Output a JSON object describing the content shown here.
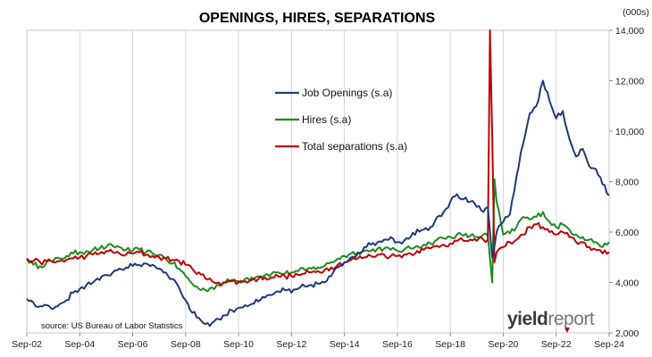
{
  "chart_data": {
    "type": "line",
    "title": "OPENINGS, HIRES, SEPARATIONS",
    "unit_label": "(000s)",
    "xlabel": "",
    "ylabel": "",
    "x_tick_labels": [
      "Sep-02",
      "Sep-04",
      "Sep-06",
      "Sep-08",
      "Sep-10",
      "Sep-12",
      "Sep-14",
      "Sep-16",
      "Sep-18",
      "Sep-20",
      "Sep-22",
      "Sep-24"
    ],
    "x_range": [
      "2002-09",
      "2024-09"
    ],
    "ylim": [
      2000,
      14000
    ],
    "y_ticks": [
      2000,
      4000,
      6000,
      8000,
      10000,
      12000,
      14000
    ],
    "y_axis_side": "right",
    "grid": "vertical",
    "legend_position": "center-top",
    "source_note": "source: US Bureau of Labor Statistics",
    "brand": {
      "part1": "yield",
      "part2": "report"
    },
    "series": [
      {
        "name": "Job Openings (s.a)",
        "color": "#1f3a7a",
        "points": [
          [
            "2002-09",
            3350
          ],
          [
            "2002-12",
            3200
          ],
          [
            "2003-03",
            3050
          ],
          [
            "2003-06",
            3100
          ],
          [
            "2003-09",
            2950
          ],
          [
            "2003-12",
            3150
          ],
          [
            "2004-03",
            3300
          ],
          [
            "2004-06",
            3600
          ],
          [
            "2004-09",
            3750
          ],
          [
            "2004-12",
            3900
          ],
          [
            "2005-03",
            4000
          ],
          [
            "2005-06",
            4100
          ],
          [
            "2005-09",
            4300
          ],
          [
            "2005-12",
            4400
          ],
          [
            "2006-03",
            4550
          ],
          [
            "2006-06",
            4600
          ],
          [
            "2006-09",
            4650
          ],
          [
            "2006-12",
            4700
          ],
          [
            "2007-03",
            4750
          ],
          [
            "2007-06",
            4700
          ],
          [
            "2007-09",
            4550
          ],
          [
            "2007-12",
            4400
          ],
          [
            "2008-03",
            4150
          ],
          [
            "2008-06",
            3800
          ],
          [
            "2008-09",
            3300
          ],
          [
            "2008-12",
            2800
          ],
          [
            "2009-03",
            2600
          ],
          [
            "2009-06",
            2350
          ],
          [
            "2009-09",
            2400
          ],
          [
            "2009-12",
            2550
          ],
          [
            "2010-03",
            2700
          ],
          [
            "2010-06",
            2900
          ],
          [
            "2010-09",
            3000
          ],
          [
            "2010-12",
            3100
          ],
          [
            "2011-03",
            3150
          ],
          [
            "2011-06",
            3250
          ],
          [
            "2011-09",
            3400
          ],
          [
            "2011-12",
            3500
          ],
          [
            "2012-03",
            3650
          ],
          [
            "2012-06",
            3700
          ],
          [
            "2012-09",
            3600
          ],
          [
            "2012-12",
            3750
          ],
          [
            "2013-03",
            3850
          ],
          [
            "2013-06",
            3900
          ],
          [
            "2013-09",
            3950
          ],
          [
            "2013-12",
            4000
          ],
          [
            "2014-03",
            4250
          ],
          [
            "2014-06",
            4600
          ],
          [
            "2014-09",
            4800
          ],
          [
            "2014-12",
            5000
          ],
          [
            "2015-03",
            5150
          ],
          [
            "2015-06",
            5400
          ],
          [
            "2015-09",
            5500
          ],
          [
            "2015-12",
            5600
          ],
          [
            "2016-03",
            5700
          ],
          [
            "2016-06",
            5800
          ],
          [
            "2016-09",
            5600
          ],
          [
            "2016-12",
            5650
          ],
          [
            "2017-03",
            5800
          ],
          [
            "2017-06",
            6100
          ],
          [
            "2017-09",
            6100
          ],
          [
            "2017-12",
            6200
          ],
          [
            "2018-03",
            6600
          ],
          [
            "2018-06",
            6800
          ],
          [
            "2018-09",
            7200
          ],
          [
            "2018-12",
            7500
          ],
          [
            "2019-03",
            7300
          ],
          [
            "2019-06",
            7200
          ],
          [
            "2019-09",
            7000
          ],
          [
            "2019-12",
            6800
          ],
          [
            "2020-02",
            7000
          ],
          [
            "2020-04",
            5000
          ],
          [
            "2020-06",
            6000
          ],
          [
            "2020-09",
            6400
          ],
          [
            "2020-12",
            6700
          ],
          [
            "2021-03",
            8200
          ],
          [
            "2021-06",
            9500
          ],
          [
            "2021-09",
            10700
          ],
          [
            "2021-12",
            11000
          ],
          [
            "2022-03",
            12000
          ],
          [
            "2022-06",
            11200
          ],
          [
            "2022-09",
            10500
          ],
          [
            "2022-12",
            10800
          ],
          [
            "2023-03",
            9700
          ],
          [
            "2023-06",
            9000
          ],
          [
            "2023-09",
            9300
          ],
          [
            "2023-12",
            8600
          ],
          [
            "2024-03",
            8500
          ],
          [
            "2024-06",
            7900
          ],
          [
            "2024-09",
            7450
          ]
        ]
      },
      {
        "name": "Hires (s.a)",
        "color": "#1e8a1e",
        "points": [
          [
            "2002-09",
            4950
          ],
          [
            "2002-12",
            4700
          ],
          [
            "2003-03",
            4650
          ],
          [
            "2003-06",
            4800
          ],
          [
            "2003-09",
            4850
          ],
          [
            "2003-12",
            4950
          ],
          [
            "2004-03",
            5050
          ],
          [
            "2004-06",
            5150
          ],
          [
            "2004-09",
            5200
          ],
          [
            "2004-12",
            5250
          ],
          [
            "2005-03",
            5300
          ],
          [
            "2005-06",
            5350
          ],
          [
            "2005-09",
            5400
          ],
          [
            "2005-12",
            5450
          ],
          [
            "2006-03",
            5400
          ],
          [
            "2006-06",
            5300
          ],
          [
            "2006-09",
            5250
          ],
          [
            "2006-12",
            5300
          ],
          [
            "2007-03",
            5200
          ],
          [
            "2007-06",
            5150
          ],
          [
            "2007-09",
            5100
          ],
          [
            "2007-12",
            4950
          ],
          [
            "2008-03",
            4750
          ],
          [
            "2008-06",
            4550
          ],
          [
            "2008-09",
            4250
          ],
          [
            "2008-12",
            3950
          ],
          [
            "2009-03",
            3750
          ],
          [
            "2009-06",
            3700
          ],
          [
            "2009-09",
            3800
          ],
          [
            "2009-12",
            3900
          ],
          [
            "2010-03",
            4000
          ],
          [
            "2010-06",
            4100
          ],
          [
            "2010-09",
            4050
          ],
          [
            "2010-12",
            4150
          ],
          [
            "2011-03",
            4200
          ],
          [
            "2011-06",
            4250
          ],
          [
            "2011-09",
            4300
          ],
          [
            "2011-12",
            4350
          ],
          [
            "2012-03",
            4400
          ],
          [
            "2012-06",
            4350
          ],
          [
            "2012-09",
            4400
          ],
          [
            "2012-12",
            4450
          ],
          [
            "2013-03",
            4500
          ],
          [
            "2013-06",
            4550
          ],
          [
            "2013-09",
            4600
          ],
          [
            "2013-12",
            4650
          ],
          [
            "2014-03",
            4800
          ],
          [
            "2014-06",
            4950
          ],
          [
            "2014-09",
            5050
          ],
          [
            "2014-12",
            5150
          ],
          [
            "2015-03",
            5200
          ],
          [
            "2015-06",
            5250
          ],
          [
            "2015-09",
            5250
          ],
          [
            "2015-12",
            5350
          ],
          [
            "2016-03",
            5350
          ],
          [
            "2016-06",
            5300
          ],
          [
            "2016-09",
            5250
          ],
          [
            "2016-12",
            5300
          ],
          [
            "2017-03",
            5350
          ],
          [
            "2017-06",
            5450
          ],
          [
            "2017-09",
            5500
          ],
          [
            "2017-12",
            5550
          ],
          [
            "2018-03",
            5700
          ],
          [
            "2018-06",
            5750
          ],
          [
            "2018-09",
            5800
          ],
          [
            "2018-12",
            5900
          ],
          [
            "2019-03",
            5850
          ],
          [
            "2019-06",
            5850
          ],
          [
            "2019-09",
            5800
          ],
          [
            "2019-12",
            5900
          ],
          [
            "2020-02",
            5850
          ],
          [
            "2020-04",
            4000
          ],
          [
            "2020-05",
            8100
          ],
          [
            "2020-06",
            7200
          ],
          [
            "2020-09",
            5900
          ],
          [
            "2020-12",
            5950
          ],
          [
            "2021-03",
            6200
          ],
          [
            "2021-06",
            6600
          ],
          [
            "2021-09",
            6500
          ],
          [
            "2021-12",
            6600
          ],
          [
            "2022-03",
            6800
          ],
          [
            "2022-06",
            6400
          ],
          [
            "2022-09",
            6200
          ],
          [
            "2022-12",
            6300
          ],
          [
            "2023-03",
            6100
          ],
          [
            "2023-06",
            5900
          ],
          [
            "2023-09",
            5800
          ],
          [
            "2023-12",
            5700
          ],
          [
            "2024-03",
            5600
          ],
          [
            "2024-06",
            5400
          ],
          [
            "2024-09",
            5600
          ]
        ]
      },
      {
        "name": "Total separations (s.a)",
        "color": "#c00000",
        "points": [
          [
            "2002-09",
            4950
          ],
          [
            "2002-12",
            4850
          ],
          [
            "2003-03",
            4800
          ],
          [
            "2003-06",
            4850
          ],
          [
            "2003-09",
            4800
          ],
          [
            "2003-12",
            4850
          ],
          [
            "2004-03",
            4900
          ],
          [
            "2004-06",
            4950
          ],
          [
            "2004-09",
            5000
          ],
          [
            "2004-12",
            5050
          ],
          [
            "2005-03",
            5100
          ],
          [
            "2005-06",
            5150
          ],
          [
            "2005-09",
            5250
          ],
          [
            "2005-12",
            5200
          ],
          [
            "2006-03",
            5150
          ],
          [
            "2006-06",
            5100
          ],
          [
            "2006-09",
            5150
          ],
          [
            "2006-12",
            5200
          ],
          [
            "2007-03",
            5100
          ],
          [
            "2007-06",
            5050
          ],
          [
            "2007-09",
            5000
          ],
          [
            "2007-12",
            4950
          ],
          [
            "2008-03",
            4900
          ],
          [
            "2008-06",
            4850
          ],
          [
            "2008-09",
            4700
          ],
          [
            "2008-12",
            4550
          ],
          [
            "2009-03",
            4400
          ],
          [
            "2009-06",
            4150
          ],
          [
            "2009-09",
            4050
          ],
          [
            "2009-12",
            4000
          ],
          [
            "2010-03",
            4000
          ],
          [
            "2010-06",
            4050
          ],
          [
            "2010-09",
            4000
          ],
          [
            "2010-12",
            4050
          ],
          [
            "2011-03",
            4100
          ],
          [
            "2011-06",
            4150
          ],
          [
            "2011-09",
            4200
          ],
          [
            "2011-12",
            4200
          ],
          [
            "2012-03",
            4250
          ],
          [
            "2012-06",
            4250
          ],
          [
            "2012-09",
            4250
          ],
          [
            "2012-12",
            4300
          ],
          [
            "2013-03",
            4350
          ],
          [
            "2013-06",
            4400
          ],
          [
            "2013-09",
            4450
          ],
          [
            "2013-12",
            4500
          ],
          [
            "2014-03",
            4600
          ],
          [
            "2014-06",
            4700
          ],
          [
            "2014-09",
            4800
          ],
          [
            "2014-12",
            4900
          ],
          [
            "2015-03",
            4950
          ],
          [
            "2015-06",
            5000
          ],
          [
            "2015-09",
            5050
          ],
          [
            "2015-12",
            5100
          ],
          [
            "2016-03",
            5100
          ],
          [
            "2016-06",
            5050
          ],
          [
            "2016-09",
            5050
          ],
          [
            "2016-12",
            5100
          ],
          [
            "2017-03",
            5150
          ],
          [
            "2017-06",
            5250
          ],
          [
            "2017-09",
            5300
          ],
          [
            "2017-12",
            5350
          ],
          [
            "2018-03",
            5450
          ],
          [
            "2018-06",
            5500
          ],
          [
            "2018-09",
            5550
          ],
          [
            "2018-12",
            5650
          ],
          [
            "2019-03",
            5650
          ],
          [
            "2019-06",
            5700
          ],
          [
            "2019-09",
            5650
          ],
          [
            "2019-12",
            5700
          ],
          [
            "2020-02",
            5700
          ],
          [
            "2020-03",
            14000
          ],
          [
            "2020-04",
            9800
          ],
          [
            "2020-05",
            4800
          ],
          [
            "2020-06",
            5200
          ],
          [
            "2020-09",
            5400
          ],
          [
            "2020-12",
            5600
          ],
          [
            "2021-03",
            5700
          ],
          [
            "2021-06",
            5900
          ],
          [
            "2021-09",
            6200
          ],
          [
            "2021-12",
            6300
          ],
          [
            "2022-03",
            6200
          ],
          [
            "2022-06",
            6000
          ],
          [
            "2022-09",
            5900
          ],
          [
            "2022-12",
            6000
          ],
          [
            "2023-03",
            5800
          ],
          [
            "2023-06",
            5600
          ],
          [
            "2023-09",
            5600
          ],
          [
            "2023-12",
            5400
          ],
          [
            "2024-03",
            5300
          ],
          [
            "2024-06",
            5150
          ],
          [
            "2024-09",
            5200
          ]
        ]
      }
    ]
  }
}
